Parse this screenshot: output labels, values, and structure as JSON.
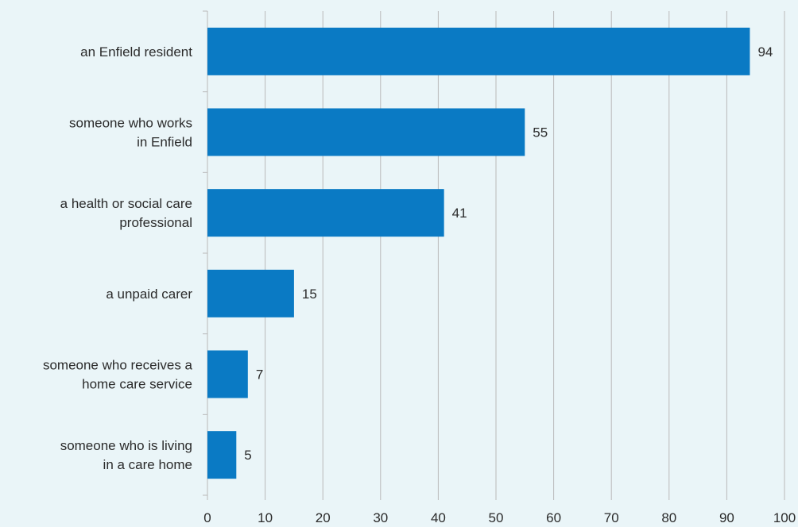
{
  "chart_data": {
    "type": "bar",
    "orientation": "horizontal",
    "categories": [
      [
        "an Enfield resident"
      ],
      [
        "someone who works",
        "in Enfield"
      ],
      [
        "a health or social care",
        "professional"
      ],
      [
        "a unpaid carer"
      ],
      [
        "someone who receives a",
        "home care service"
      ],
      [
        "someone who is living",
        "in a care home"
      ]
    ],
    "values": [
      94,
      55,
      41,
      15,
      7,
      5
    ],
    "xlim": [
      0,
      100
    ],
    "xticks": [
      0,
      10,
      20,
      30,
      40,
      50,
      60,
      70,
      80,
      90,
      100
    ],
    "grid": "vertical",
    "legend": "none",
    "bar_color": "#0A7AC4",
    "grid_color": "#B9B9B9",
    "title": "",
    "xlabel": "",
    "ylabel": ""
  }
}
